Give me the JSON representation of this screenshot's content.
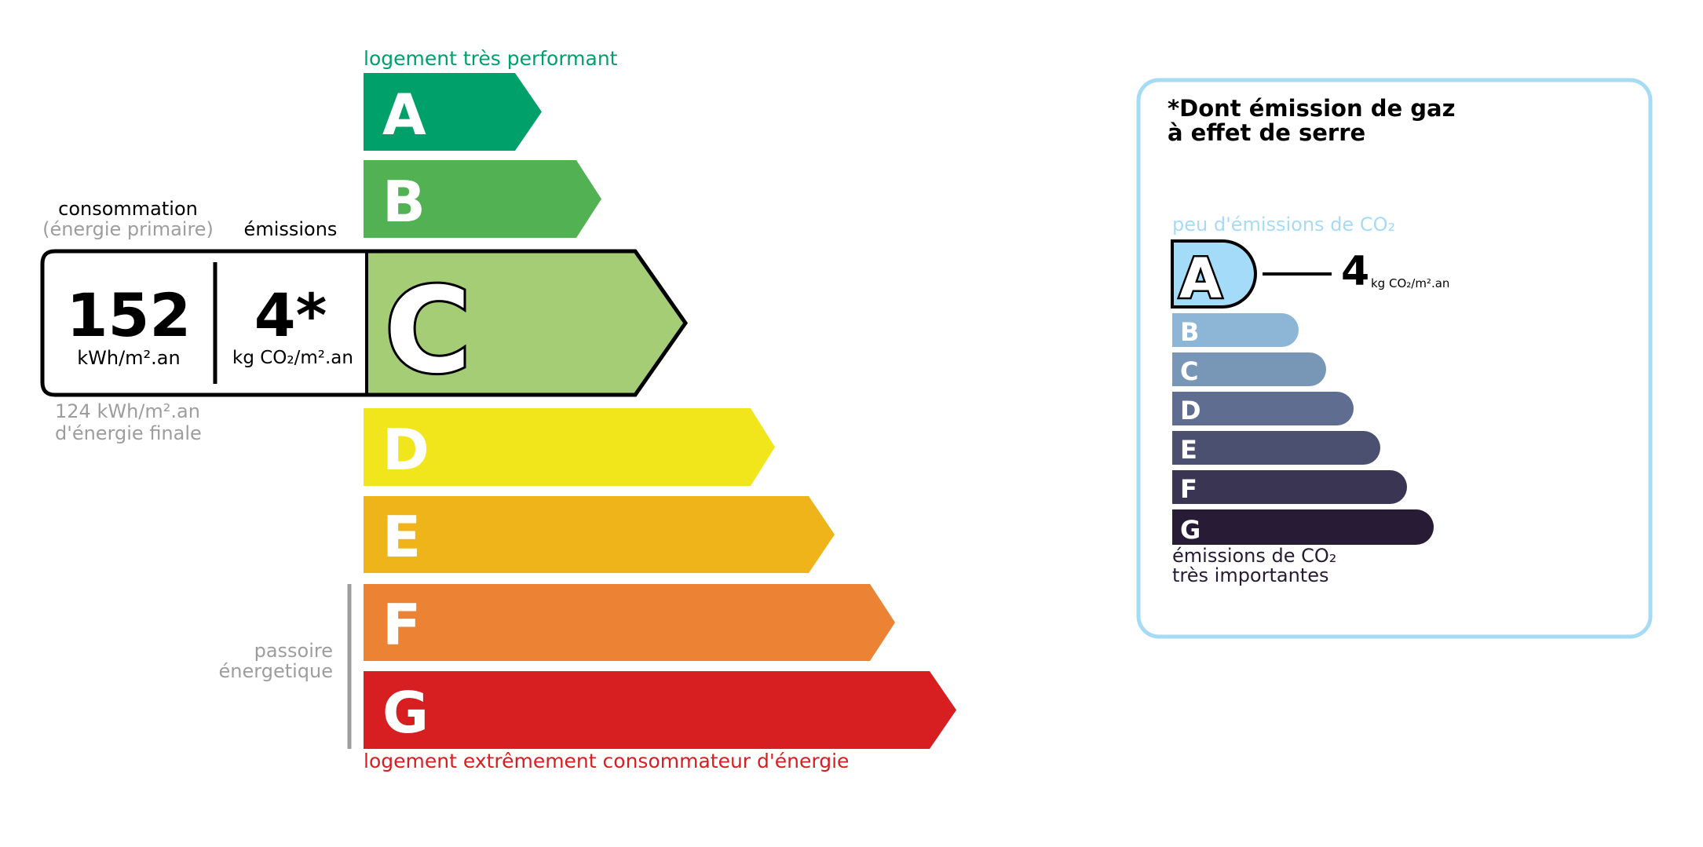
{
  "energy": {
    "top_label": "logement très performant",
    "bottom_label": "logement extrêmement consommateur d'énergie",
    "passoire_label": [
      "passoire",
      "énergetique"
    ],
    "classes": [
      {
        "letter": "A",
        "color": "#00a06b"
      },
      {
        "letter": "B",
        "color": "#52b153"
      },
      {
        "letter": "C",
        "color": "#a5cd75"
      },
      {
        "letter": "D",
        "color": "#f1e61b"
      },
      {
        "letter": "E",
        "color": "#efb419"
      },
      {
        "letter": "F",
        "color": "#eb8234"
      },
      {
        "letter": "G",
        "color": "#d71e21"
      }
    ],
    "selected_class": "C",
    "consumption_header": "consommation",
    "consumption_subheader": "(énergie primaire)",
    "emissions_header": "émissions",
    "consumption_value": "152",
    "consumption_unit": "kWh/m².an",
    "emissions_value": "4*",
    "emissions_unit": "kg CO₂/m².an",
    "final_energy_value": "124 kWh/m².an",
    "final_energy_label": "d'énergie finale",
    "top_label_color": "#00a06b",
    "bottom_label_color": "#d71e21"
  },
  "ghg": {
    "title_line1": "*Dont émission de gaz",
    "title_line2": "à effet de serre",
    "top_label": "peu d'émissions de CO₂",
    "bottom_label_line1": "émissions de CO₂",
    "bottom_label_line2": "très importantes",
    "value": "4",
    "unit": "kg CO₂/m².an",
    "selected_class": "A",
    "border_color": "#a6dbf6",
    "classes": [
      {
        "letter": "A",
        "color": "#a4dbf8"
      },
      {
        "letter": "B",
        "color": "#8db5d6"
      },
      {
        "letter": "C",
        "color": "#7896b6"
      },
      {
        "letter": "D",
        "color": "#5f6e90"
      },
      {
        "letter": "E",
        "color": "#4c5070"
      },
      {
        "letter": "F",
        "color": "#393552"
      },
      {
        "letter": "G",
        "color": "#281b35"
      }
    ]
  }
}
